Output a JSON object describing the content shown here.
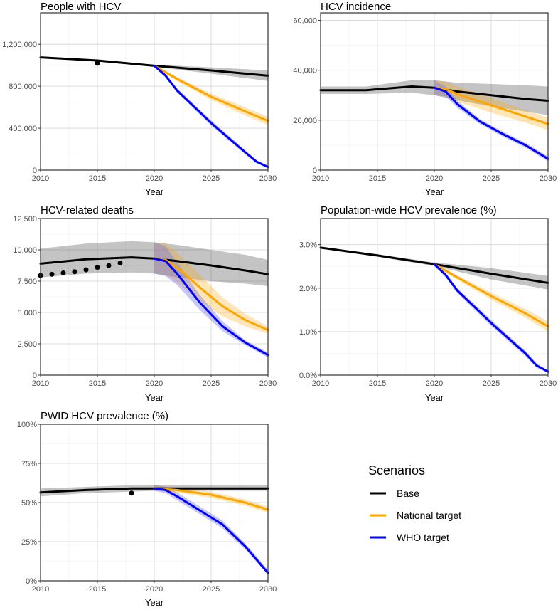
{
  "legend": {
    "title": "Scenarios",
    "entries": [
      {
        "label": "Base",
        "color": "#000000"
      },
      {
        "label": "National target",
        "color": "#FFA500"
      },
      {
        "label": "WHO target",
        "color": "#0000FF"
      }
    ]
  },
  "chart_data": [
    {
      "type": "line",
      "title": "People with HCV",
      "xlabel": "Year",
      "ylabel": "",
      "xlim": [
        2010,
        2030
      ],
      "ylim": [
        0,
        1500000
      ],
      "xticks": [
        2010,
        2015,
        2020,
        2025,
        2030
      ],
      "xtick_labels": [
        "2010",
        "2015",
        "2020",
        "2025",
        "2030"
      ],
      "yticks": [
        0,
        400000,
        800000,
        1200000
      ],
      "ytick_labels": [
        "0",
        "400,000",
        "800,000",
        "1,200,000"
      ],
      "series": [
        {
          "name": "Base",
          "color": "#000000",
          "x": [
            2010,
            2015,
            2020,
            2025,
            2030
          ],
          "values": [
            1075000,
            1045000,
            995000,
            950000,
            900000
          ],
          "lower": [
            1070000,
            1035000,
            985000,
            920000,
            850000
          ],
          "upper": [
            1080000,
            1055000,
            1005000,
            980000,
            950000
          ]
        },
        {
          "name": "National target",
          "color": "#FFA500",
          "x": [
            2020,
            2022,
            2025,
            2028,
            2030
          ],
          "values": [
            995000,
            870000,
            700000,
            560000,
            470000
          ],
          "lower": [
            985000,
            850000,
            670000,
            520000,
            430000
          ],
          "upper": [
            1005000,
            890000,
            730000,
            600000,
            510000
          ]
        },
        {
          "name": "WHO target",
          "color": "#0000FF",
          "x": [
            2020,
            2021,
            2022,
            2025,
            2028,
            2029,
            2030
          ],
          "values": [
            995000,
            900000,
            760000,
            450000,
            170000,
            80000,
            30000
          ],
          "lower": [
            985000,
            885000,
            740000,
            425000,
            150000,
            65000,
            20000
          ],
          "upper": [
            1005000,
            915000,
            780000,
            475000,
            190000,
            95000,
            40000
          ]
        }
      ],
      "observed": {
        "x": [
          2015
        ],
        "values": [
          1020000
        ]
      }
    },
    {
      "type": "line",
      "title": "HCV incidence",
      "xlabel": "Year",
      "ylabel": "",
      "xlim": [
        2010,
        2030
      ],
      "ylim": [
        0,
        63000
      ],
      "xticks": [
        2010,
        2015,
        2020,
        2025,
        2030
      ],
      "xtick_labels": [
        "2010",
        "2015",
        "2020",
        "2025",
        "2030"
      ],
      "yticks": [
        0,
        20000,
        40000,
        60000
      ],
      "ytick_labels": [
        "0",
        "20,000",
        "40,000",
        "60,000"
      ],
      "series": [
        {
          "name": "Base",
          "color": "#000000",
          "x": [
            2010,
            2014,
            2018,
            2020,
            2022,
            2025,
            2028,
            2030
          ],
          "values": [
            32000,
            32000,
            33500,
            33000,
            31500,
            30000,
            28500,
            27800
          ],
          "lower": [
            30500,
            30500,
            31000,
            30000,
            28000,
            25500,
            23500,
            22000
          ],
          "upper": [
            33500,
            33500,
            36000,
            36000,
            35000,
            34500,
            34000,
            33500
          ]
        },
        {
          "name": "National target",
          "color": "#FFA500",
          "x": [
            2020,
            2021,
            2022,
            2025,
            2028,
            2030
          ],
          "values": [
            33000,
            32500,
            30500,
            26000,
            21500,
            18500
          ],
          "lower": [
            30000,
            29500,
            27500,
            23000,
            19000,
            16000
          ],
          "upper": [
            36000,
            35500,
            33500,
            29000,
            24000,
            21000
          ]
        },
        {
          "name": "WHO target",
          "color": "#0000FF",
          "x": [
            2020,
            2021,
            2022,
            2024,
            2026,
            2028,
            2030
          ],
          "values": [
            33000,
            31500,
            26500,
            19500,
            14500,
            10000,
            4500
          ],
          "lower": [
            30000,
            29500,
            25000,
            18500,
            13500,
            9000,
            3500
          ],
          "upper": [
            36000,
            33500,
            28000,
            20500,
            15500,
            11000,
            5500
          ]
        }
      ]
    },
    {
      "type": "line",
      "title": "HCV-related deaths",
      "xlabel": "Year",
      "ylabel": "",
      "xlim": [
        2010,
        2030
      ],
      "ylim": [
        0,
        12500
      ],
      "xticks": [
        2010,
        2015,
        2020,
        2025,
        2030
      ],
      "xtick_labels": [
        "2010",
        "2015",
        "2020",
        "2025",
        "2030"
      ],
      "yticks": [
        0,
        2500,
        5000,
        7500,
        10000,
        12500
      ],
      "ytick_labels": [
        "0",
        "2,500",
        "5,000",
        "7,500",
        "10,000",
        "12,500"
      ],
      "series": [
        {
          "name": "Base",
          "color": "#000000",
          "x": [
            2010,
            2014,
            2018,
            2020,
            2022,
            2025,
            2028,
            2030
          ],
          "values": [
            8900,
            9250,
            9400,
            9300,
            9100,
            8750,
            8350,
            8050
          ],
          "lower": [
            7800,
            8100,
            8200,
            8100,
            7800,
            7500,
            7300,
            7100
          ],
          "upper": [
            10100,
            10500,
            10700,
            10600,
            10400,
            10000,
            9600,
            9200
          ]
        },
        {
          "name": "National target",
          "color": "#FFA500",
          "x": [
            2020,
            2021,
            2022,
            2024,
            2026,
            2028,
            2030
          ],
          "values": [
            9300,
            9200,
            8600,
            7000,
            5500,
            4400,
            3600
          ],
          "lower": [
            8100,
            8000,
            7400,
            5900,
            4700,
            3900,
            3300
          ],
          "upper": [
            10600,
            10500,
            9800,
            8000,
            6200,
            4900,
            3900
          ]
        },
        {
          "name": "WHO target",
          "color": "#0000FF",
          "x": [
            2020,
            2021,
            2022,
            2024,
            2026,
            2028,
            2030
          ],
          "values": [
            9300,
            9100,
            8100,
            5800,
            3900,
            2600,
            1600
          ],
          "lower": [
            8100,
            7900,
            7200,
            5200,
            3500,
            2400,
            1400
          ],
          "upper": [
            10600,
            10300,
            9000,
            6400,
            4300,
            2800,
            1800
          ]
        }
      ],
      "observed": {
        "x": [
          2010,
          2011,
          2012,
          2013,
          2014,
          2015,
          2016,
          2017
        ],
        "values": [
          7950,
          8050,
          8150,
          8250,
          8400,
          8600,
          8750,
          8950
        ]
      }
    },
    {
      "type": "line",
      "title": "Population-wide HCV prevalence (%)",
      "xlabel": "Year",
      "ylabel": "",
      "xlim": [
        2010,
        2030
      ],
      "ylim": [
        0,
        3.6
      ],
      "xticks": [
        2010,
        2015,
        2020,
        2025,
        2030
      ],
      "xtick_labels": [
        "2010",
        "2015",
        "2020",
        "2025",
        "2030"
      ],
      "yticks": [
        0,
        1,
        2,
        3
      ],
      "ytick_labels": [
        "0.0%",
        "1.0%",
        "2.0%",
        "3.0%"
      ],
      "series": [
        {
          "name": "Base",
          "color": "#000000",
          "x": [
            2010,
            2015,
            2020,
            2025,
            2030
          ],
          "values": [
            2.93,
            2.75,
            2.55,
            2.33,
            2.12
          ],
          "lower": [
            2.91,
            2.72,
            2.51,
            2.2,
            1.97
          ],
          "upper": [
            2.95,
            2.78,
            2.59,
            2.46,
            2.28
          ]
        },
        {
          "name": "National target",
          "color": "#FFA500",
          "x": [
            2020,
            2022,
            2025,
            2028,
            2030
          ],
          "values": [
            2.55,
            2.25,
            1.82,
            1.42,
            1.12
          ],
          "lower": [
            2.51,
            2.2,
            1.74,
            1.32,
            1.0
          ],
          "upper": [
            2.59,
            2.3,
            1.9,
            1.52,
            1.24
          ]
        },
        {
          "name": "WHO target",
          "color": "#0000FF",
          "x": [
            2020,
            2021,
            2022,
            2025,
            2028,
            2029,
            2030
          ],
          "values": [
            2.55,
            2.3,
            1.95,
            1.2,
            0.5,
            0.22,
            0.08
          ],
          "lower": [
            2.51,
            2.25,
            1.89,
            1.13,
            0.44,
            0.17,
            0.05
          ],
          "upper": [
            2.59,
            2.35,
            2.01,
            1.27,
            0.56,
            0.27,
            0.11
          ]
        }
      ]
    },
    {
      "type": "line",
      "title": "PWID HCV prevalence (%)",
      "xlabel": "Year",
      "ylabel": "",
      "xlim": [
        2010,
        2030
      ],
      "ylim": [
        0,
        100
      ],
      "xticks": [
        2010,
        2015,
        2020,
        2025,
        2030
      ],
      "xtick_labels": [
        "2010",
        "2015",
        "2020",
        "2025",
        "2030"
      ],
      "yticks": [
        0,
        25,
        50,
        75,
        100
      ],
      "ytick_labels": [
        "0%",
        "25%",
        "50%",
        "75%",
        "100%"
      ],
      "series": [
        {
          "name": "Base",
          "color": "#000000",
          "x": [
            2010,
            2014,
            2018,
            2020,
            2025,
            2030
          ],
          "values": [
            56.5,
            58,
            59,
            59,
            59,
            59
          ],
          "lower": [
            54,
            56,
            57,
            57.5,
            57.5,
            57.5
          ],
          "upper": [
            59,
            60,
            61,
            61,
            61,
            61
          ]
        },
        {
          "name": "National target",
          "color": "#FFA500",
          "x": [
            2020,
            2022,
            2025,
            2028,
            2030
          ],
          "values": [
            59,
            58,
            55,
            50,
            45.5
          ],
          "lower": [
            57.5,
            56.5,
            53,
            48,
            43.5
          ],
          "upper": [
            61,
            59.5,
            57,
            52,
            47.5
          ]
        },
        {
          "name": "WHO target",
          "color": "#0000FF",
          "x": [
            2020,
            2021,
            2022,
            2024,
            2026,
            2028,
            2030
          ],
          "values": [
            59,
            58,
            54,
            45,
            36,
            22,
            5
          ],
          "lower": [
            57.5,
            56,
            51.5,
            42.5,
            33.5,
            20,
            4
          ],
          "upper": [
            61,
            60,
            56.5,
            47.5,
            38.5,
            24,
            7
          ]
        }
      ],
      "observed": {
        "x": [
          2018
        ],
        "values": [
          56
        ]
      }
    }
  ]
}
